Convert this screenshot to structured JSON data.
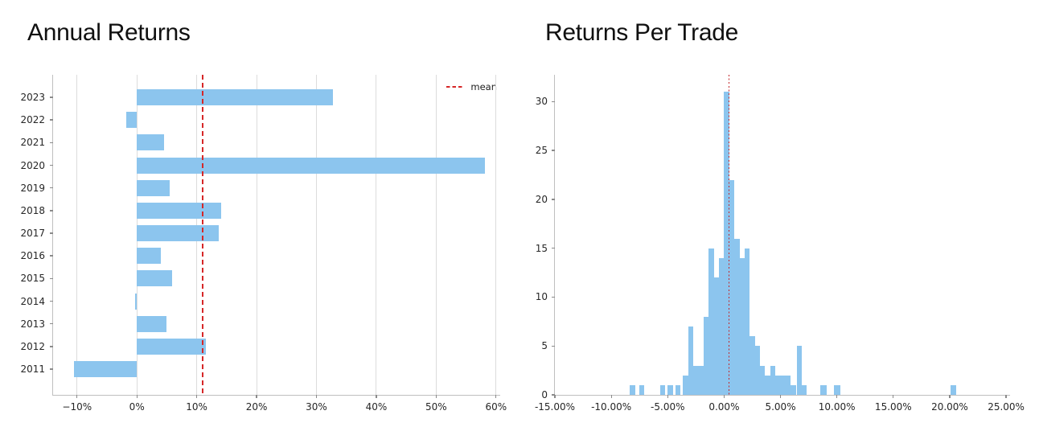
{
  "page": {
    "background": "#ffffff"
  },
  "colors": {
    "bar_fill": "#8cc5ee",
    "mean_line": "#d62728",
    "gridline": "#dcdcdc",
    "spine": "#bfbfbf",
    "tick_label": "#262626",
    "title": "#101010"
  },
  "chart_data": [
    {
      "type": "bar",
      "orientation": "horizontal",
      "title": "Annual Returns",
      "categories": [
        "2023",
        "2022",
        "2021",
        "2020",
        "2019",
        "2018",
        "2017",
        "2016",
        "2015",
        "2014",
        "2013",
        "2012",
        "2011"
      ],
      "values": [
        32.8,
        -1.8,
        4.5,
        58.2,
        5.5,
        14.1,
        13.7,
        4.0,
        5.9,
        -0.3,
        5.0,
        11.5,
        -10.5
      ],
      "value_unit": "percent",
      "mean": 11.0,
      "x_tick_values": [
        -10,
        0,
        10,
        20,
        30,
        40,
        50,
        60
      ],
      "x_tick_labels": [
        "−10%",
        "0%",
        "10%",
        "20%",
        "30%",
        "40%",
        "50%",
        "60%"
      ],
      "xlim": [
        -14,
        60.7
      ],
      "grid": "vertical",
      "legend": {
        "label": "mean",
        "line_style": "dashed",
        "position": "upper right"
      }
    },
    {
      "type": "histogram",
      "title": "Returns Per Trade",
      "x_tick_values": [
        -15,
        -10,
        -5,
        0,
        5,
        10,
        15,
        20,
        25
      ],
      "x_tick_labels": [
        "-15.00%",
        "-10.00%",
        "-5.00%",
        "0.00%",
        "5.00%",
        "10.00%",
        "15.00%",
        "20.00%",
        "25.00%"
      ],
      "y_tick_values": [
        0,
        5,
        10,
        15,
        20,
        25,
        30
      ],
      "y_tick_labels": [
        "0",
        "5",
        "10",
        "15",
        "20",
        "25",
        "30"
      ],
      "xlim": [
        -15,
        25.35
      ],
      "ylim": [
        0,
        32.75
      ],
      "mean": 0.42,
      "mean_line_style": "dotted",
      "grid": "none",
      "bins": [
        [
          -8.36,
          0.46,
          1
        ],
        [
          -7.55,
          0.46,
          1
        ],
        [
          -5.68,
          0.46,
          1
        ],
        [
          -5.0,
          0.46,
          1
        ],
        [
          -4.34,
          0.46,
          1
        ],
        [
          -3.64,
          0.455,
          2
        ],
        [
          -3.19,
          0.455,
          7
        ],
        [
          -2.73,
          0.455,
          3
        ],
        [
          -2.28,
          0.455,
          3
        ],
        [
          -1.82,
          0.455,
          8
        ],
        [
          -1.37,
          0.455,
          15
        ],
        [
          -0.91,
          0.455,
          12
        ],
        [
          -0.46,
          0.455,
          14
        ],
        [
          0.0,
          0.455,
          31
        ],
        [
          0.455,
          0.455,
          22
        ],
        [
          0.91,
          0.455,
          16
        ],
        [
          1.365,
          0.455,
          14
        ],
        [
          1.82,
          0.455,
          15
        ],
        [
          2.275,
          0.455,
          6
        ],
        [
          2.73,
          0.455,
          5
        ],
        [
          3.185,
          0.455,
          3
        ],
        [
          3.64,
          0.455,
          2
        ],
        [
          4.095,
          0.455,
          3
        ],
        [
          4.55,
          0.455,
          2
        ],
        [
          5.005,
          0.455,
          2
        ],
        [
          5.46,
          0.455,
          2
        ],
        [
          5.915,
          0.455,
          1
        ],
        [
          6.45,
          0.42,
          5
        ],
        [
          6.87,
          0.42,
          1
        ],
        [
          8.56,
          0.55,
          1
        ],
        [
          9.77,
          0.55,
          1
        ],
        [
          20.11,
          0.46,
          1
        ]
      ]
    }
  ]
}
